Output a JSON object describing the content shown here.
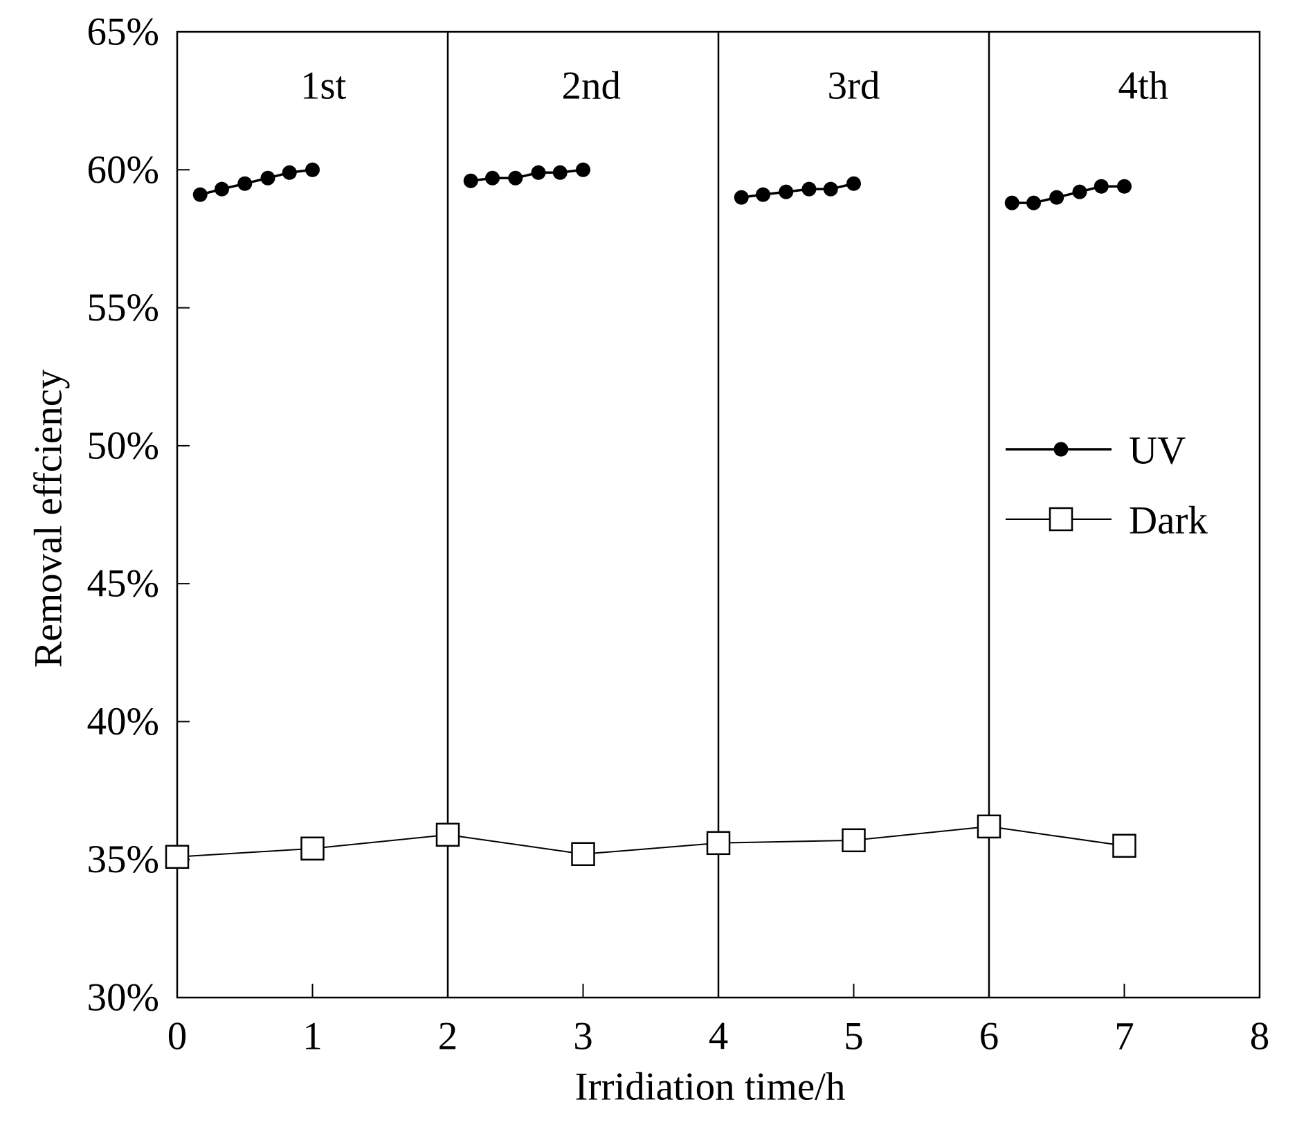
{
  "chart_data": {
    "type": "line",
    "title": "",
    "xlabel": "Irridiation time/h",
    "ylabel": "Removal effciency",
    "xlim": [
      0,
      8
    ],
    "ylim": [
      30,
      65
    ],
    "x_ticks": [
      "0",
      "1",
      "2",
      "3",
      "4",
      "5",
      "6",
      "7",
      "8"
    ],
    "y_ticks": [
      "30%",
      "35%",
      "40%",
      "45%",
      "50%",
      "55%",
      "60%",
      "65%"
    ],
    "grid": false,
    "legend_position": "right",
    "cycle_dividers": [
      2,
      4,
      6
    ],
    "cycle_labels": [
      "1st",
      "2nd",
      "3rd",
      "4th"
    ],
    "colors": {
      "axes": "#000000",
      "uv": "#000000",
      "dark": "#000000",
      "dark_marker_fill": "#ffffff"
    },
    "series": [
      {
        "name": "UV",
        "marker": "filled-circle",
        "segments": [
          {
            "x": [
              0.17,
              0.33,
              0.5,
              0.67,
              0.83,
              1.0
            ],
            "y": [
              59.1,
              59.3,
              59.5,
              59.7,
              59.9,
              60.0
            ]
          },
          {
            "x": [
              2.17,
              2.33,
              2.5,
              2.67,
              2.83,
              3.0
            ],
            "y": [
              59.6,
              59.7,
              59.7,
              59.9,
              59.9,
              60.0
            ]
          },
          {
            "x": [
              4.17,
              4.33,
              4.5,
              4.67,
              4.83,
              5.0
            ],
            "y": [
              59.0,
              59.1,
              59.2,
              59.3,
              59.3,
              59.5
            ]
          },
          {
            "x": [
              6.17,
              6.33,
              6.5,
              6.67,
              6.83,
              7.0
            ],
            "y": [
              58.8,
              58.8,
              59.0,
              59.2,
              59.4,
              59.4
            ]
          }
        ]
      },
      {
        "name": "Dark",
        "marker": "open-square",
        "segments": [
          {
            "x": [
              0,
              1,
              2,
              3,
              4,
              5,
              6,
              7
            ],
            "y": [
              35.1,
              35.4,
              35.9,
              35.2,
              35.6,
              35.7,
              36.2,
              35.5
            ]
          }
        ]
      }
    ]
  }
}
